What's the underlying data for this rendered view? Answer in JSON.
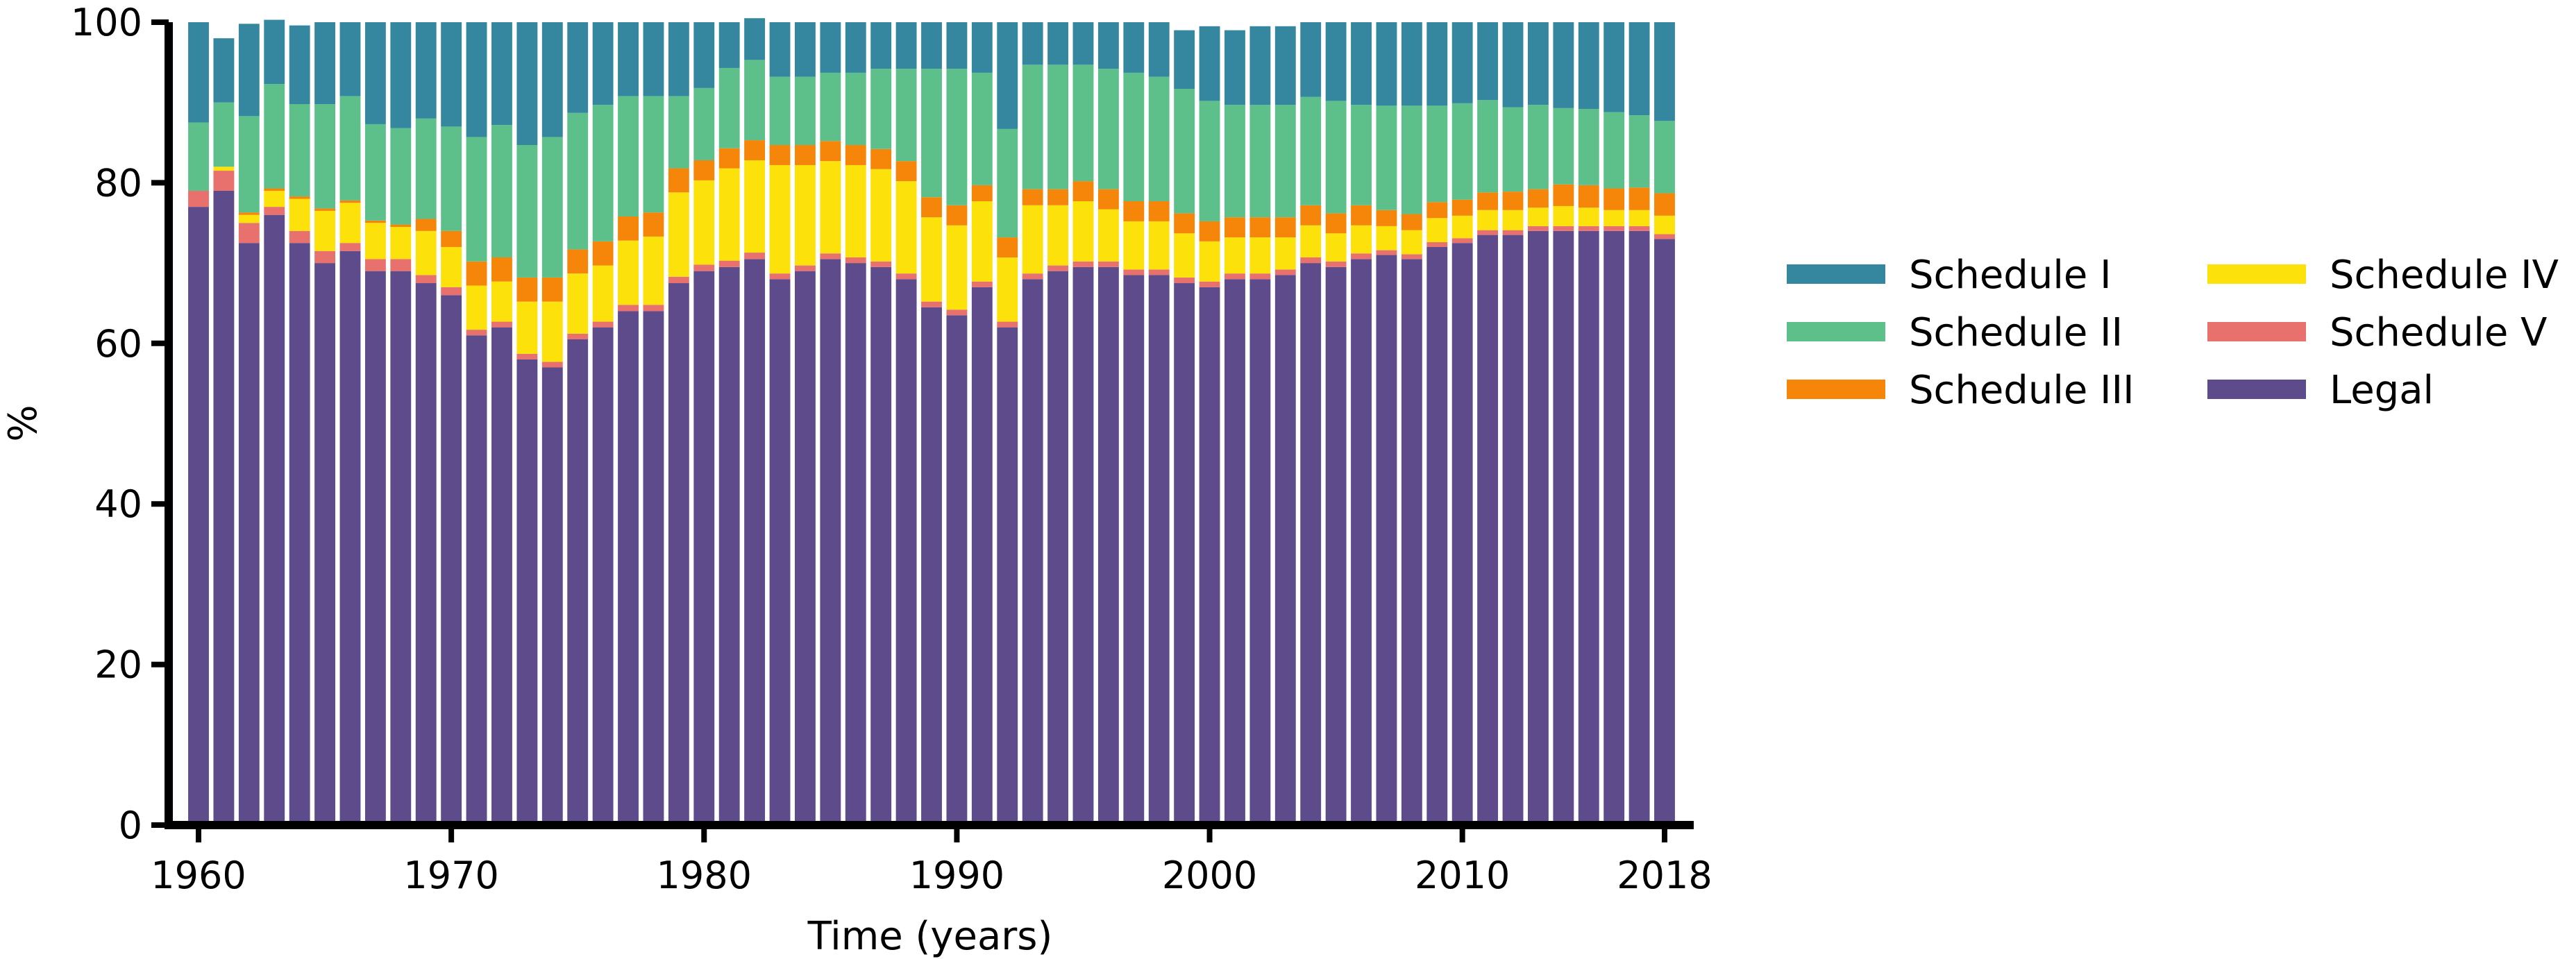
{
  "chart_data": {
    "type": "bar",
    "stacked": true,
    "title": "",
    "xlabel": "Time (years)",
    "ylabel": "%",
    "ylim": [
      0,
      100
    ],
    "yticks": [
      0,
      20,
      40,
      60,
      80,
      100
    ],
    "xticks": [
      1960,
      1970,
      1980,
      1990,
      2000,
      2010,
      2018
    ],
    "grid": false,
    "legend_position": "right",
    "legend_columns": 2,
    "categories": [
      1960,
      1961,
      1962,
      1963,
      1964,
      1965,
      1966,
      1967,
      1968,
      1969,
      1970,
      1971,
      1972,
      1973,
      1974,
      1975,
      1976,
      1977,
      1978,
      1979,
      1980,
      1981,
      1982,
      1983,
      1984,
      1985,
      1986,
      1987,
      1988,
      1989,
      1990,
      1991,
      1992,
      1993,
      1994,
      1995,
      1996,
      1997,
      1998,
      1999,
      2000,
      2001,
      2002,
      2003,
      2004,
      2005,
      2006,
      2007,
      2008,
      2009,
      2010,
      2011,
      2012,
      2013,
      2014,
      2015,
      2016,
      2017,
      2018
    ],
    "series": [
      {
        "name": "Legal",
        "color": "#5e4b8b",
        "values": [
          77,
          79,
          72.5,
          76,
          72.5,
          70,
          71.5,
          69,
          69,
          67.5,
          66,
          61,
          62,
          58,
          57,
          60.5,
          62,
          64,
          64,
          67.5,
          69,
          69.5,
          70.5,
          68,
          69,
          70.5,
          70,
          69.5,
          68,
          64.5,
          63.5,
          67,
          62,
          68,
          69,
          69.5,
          69.5,
          68.5,
          68.5,
          67.5,
          67,
          68,
          68,
          68.5,
          70,
          69.5,
          70.5,
          71,
          70.5,
          72,
          72.5,
          73.5,
          73.5,
          74,
          74,
          74,
          74,
          74,
          73
        ]
      },
      {
        "name": "Schedule V",
        "color": "#e8706d",
        "values": [
          2,
          2.5,
          2.5,
          1,
          1.5,
          1.5,
          1,
          1.5,
          1.5,
          1,
          1,
          0.7,
          0.7,
          0.7,
          0.7,
          0.7,
          0.7,
          0.8,
          0.8,
          0.8,
          0.8,
          0.8,
          0.8,
          0.7,
          0.7,
          0.7,
          0.7,
          0.7,
          0.7,
          0.7,
          0.7,
          0.7,
          0.7,
          0.7,
          0.7,
          0.7,
          0.7,
          0.7,
          0.7,
          0.7,
          0.7,
          0.7,
          0.7,
          0.7,
          0.7,
          0.7,
          0.7,
          0.6,
          0.6,
          0.6,
          0.6,
          0.6,
          0.6,
          0.6,
          0.6,
          0.6,
          0.6,
          0.6,
          0.6
        ]
      },
      {
        "name": "Schedule IV",
        "color": "#fde10a",
        "values": [
          0,
          0.5,
          1,
          2,
          4,
          5,
          5,
          4.5,
          4,
          5.5,
          5,
          5.5,
          5,
          6.5,
          7.5,
          7.5,
          7,
          8,
          8.5,
          10.5,
          10.5,
          11.5,
          11.5,
          13.5,
          12.5,
          11.5,
          11.5,
          11.5,
          11.5,
          10.5,
          10.5,
          10,
          8,
          8.5,
          7.5,
          7.5,
          6.5,
          6,
          6,
          5.5,
          5,
          4.5,
          4.5,
          4,
          4,
          3.5,
          3.5,
          3,
          3,
          3,
          2.8,
          2.5,
          2.5,
          2.3,
          2.5,
          2.3,
          2,
          2,
          2.3
        ]
      },
      {
        "name": "Schedule III",
        "color": "#f5860a",
        "values": [
          0,
          0,
          0.3,
          0.3,
          0.3,
          0.3,
          0.3,
          0.3,
          0.3,
          1.5,
          2,
          3,
          3,
          3,
          3,
          3,
          3,
          3,
          3,
          3,
          2.5,
          2.5,
          2.5,
          2.5,
          2.5,
          2.5,
          2.5,
          2.5,
          2.5,
          2.5,
          2.5,
          2,
          2.5,
          2,
          2,
          2.5,
          2.5,
          2.5,
          2.5,
          2.5,
          2.5,
          2.5,
          2.5,
          2.5,
          2.5,
          2.5,
          2.5,
          2,
          2,
          2,
          2,
          2.2,
          2.3,
          2.3,
          2.7,
          2.8,
          2.7,
          2.8,
          2.8
        ]
      },
      {
        "name": "Schedule II",
        "color": "#5dc08a",
        "values": [
          8.5,
          8,
          12,
          13,
          11.5,
          13,
          13,
          12,
          12,
          12.5,
          13,
          15.5,
          16.5,
          16.5,
          17.5,
          17,
          17,
          15,
          14.5,
          9,
          9,
          10,
          10,
          8.5,
          8.5,
          8.5,
          9,
          10,
          11.5,
          16,
          17,
          14,
          13.5,
          15.5,
          15.5,
          14.5,
          15,
          16,
          15.5,
          15.5,
          15,
          14,
          14,
          14,
          13.5,
          14,
          12.5,
          13,
          13.5,
          12,
          12,
          11.5,
          10.5,
          10.5,
          9.5,
          9.5,
          9.5,
          9,
          9
        ]
      },
      {
        "name": "Schedule I",
        "color": "#34879f",
        "values": [
          12.5,
          8,
          11.5,
          8,
          9.8,
          10.2,
          9.2,
          12.7,
          13.2,
          12,
          13,
          14.3,
          12.8,
          15.3,
          14.3,
          11.3,
          10.3,
          9.2,
          9.2,
          9.2,
          8.2,
          5.7,
          5.2,
          6.8,
          6.8,
          6.3,
          6.3,
          5.8,
          5.8,
          5.8,
          5.8,
          6.3,
          13.3,
          5.3,
          5.3,
          5.3,
          5.8,
          6.3,
          6.8,
          7.3,
          9.3,
          9.3,
          9.8,
          9.8,
          9.3,
          9.8,
          10.3,
          10.4,
          10.4,
          10.4,
          10.1,
          9.7,
          10.6,
          10.3,
          10.7,
          10.8,
          11.2,
          11.6,
          12.3
        ]
      }
    ],
    "legend_order": [
      "Schedule I",
      "Schedule IV",
      "Schedule II",
      "Schedule V",
      "Schedule III",
      "Legal"
    ]
  }
}
